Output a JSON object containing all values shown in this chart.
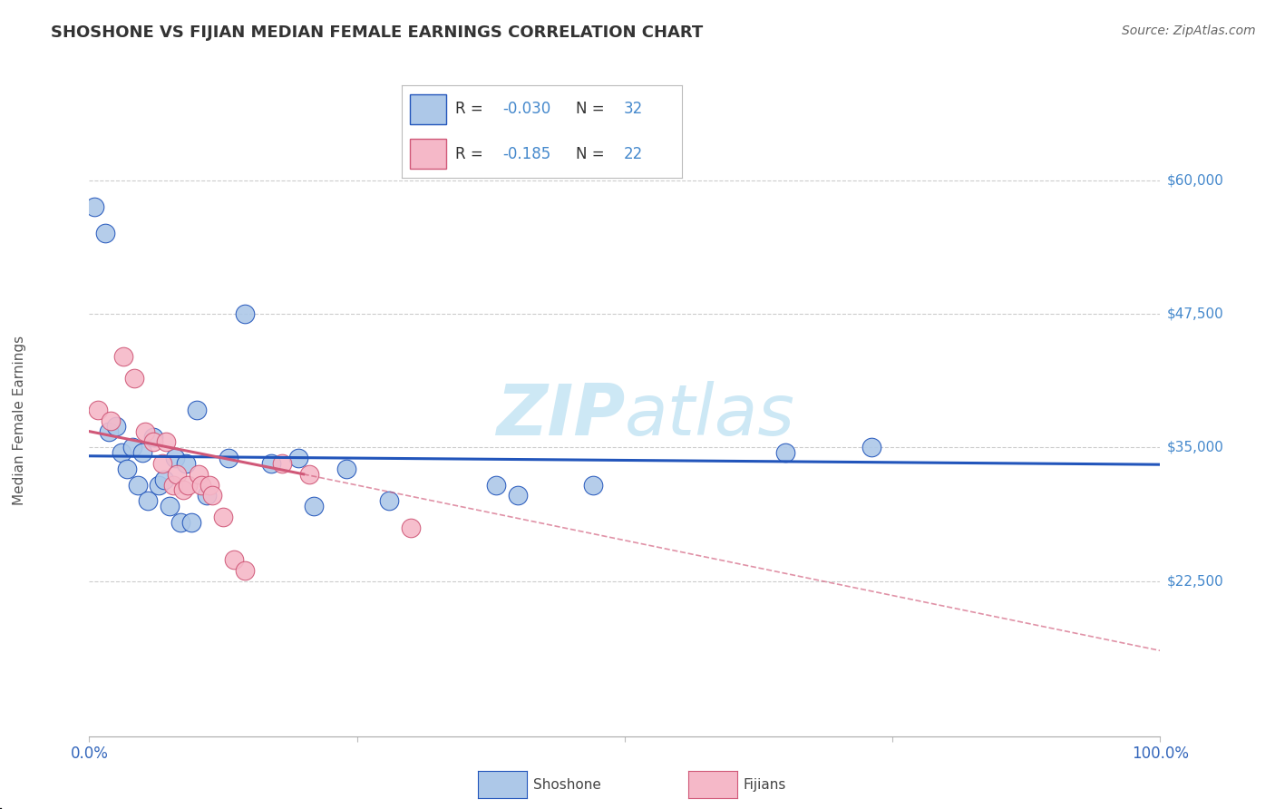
{
  "title": "SHOSHONE VS FIJIAN MEDIAN FEMALE EARNINGS CORRELATION CHART",
  "source": "Source: ZipAtlas.com",
  "ylabel": "Median Female Earnings",
  "shoshone_r": -0.03,
  "shoshone_n": 32,
  "fijian_r": -0.185,
  "fijian_n": 22,
  "shoshone_color": "#adc8e8",
  "fijian_color": "#f5b8c8",
  "shoshone_line_color": "#2255bb",
  "fijian_line_color": "#d05878",
  "ytick_labels": [
    "$22,500",
    "$35,000",
    "$47,500",
    "$60,000"
  ],
  "ytick_values": [
    22500,
    35000,
    47500,
    60000
  ],
  "ylim": [
    8000,
    67000
  ],
  "shoshone_x": [
    0.5,
    1.5,
    1.8,
    2.5,
    3.0,
    3.5,
    4.0,
    4.5,
    5.0,
    5.5,
    6.0,
    6.5,
    7.0,
    7.5,
    8.0,
    8.5,
    9.0,
    9.5,
    10.0,
    11.0,
    13.0,
    14.5,
    17.0,
    19.5,
    21.0,
    24.0,
    28.0,
    38.0,
    40.0,
    47.0,
    65.0,
    73.0
  ],
  "shoshone_y": [
    57500,
    55000,
    36500,
    37000,
    34500,
    33000,
    35000,
    31500,
    34500,
    30000,
    36000,
    31500,
    32000,
    29500,
    34000,
    28000,
    33500,
    28000,
    38500,
    30500,
    34000,
    47500,
    33500,
    34000,
    29500,
    33000,
    30000,
    31500,
    30500,
    31500,
    34500,
    35000
  ],
  "fijian_x": [
    0.8,
    2.0,
    3.2,
    4.2,
    5.2,
    6.0,
    6.8,
    7.2,
    7.8,
    8.2,
    8.8,
    9.2,
    10.2,
    10.5,
    11.2,
    11.5,
    12.5,
    13.5,
    14.5,
    18.0,
    20.5,
    30.0
  ],
  "fijian_y": [
    38500,
    37500,
    43500,
    41500,
    36500,
    35500,
    33500,
    35500,
    31500,
    32500,
    31000,
    31500,
    32500,
    31500,
    31500,
    30500,
    28500,
    24500,
    23500,
    33500,
    32500,
    27500
  ],
  "watermark_color": "#cde8f5",
  "grid_color": "#cccccc",
  "axis_label_color": "#4488cc",
  "axis_num_color": "#3366bb",
  "background_color": "#ffffff"
}
